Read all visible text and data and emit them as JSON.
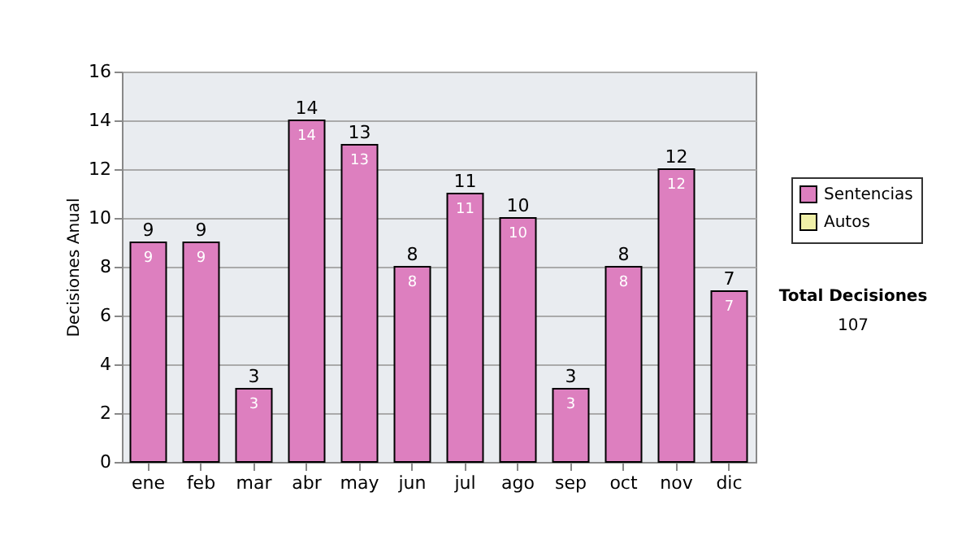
{
  "chart_data": {
    "type": "bar",
    "stacked": true,
    "ylabel": "Decisiones Anual",
    "categories": [
      "ene",
      "feb",
      "mar",
      "abr",
      "may",
      "jun",
      "jul",
      "ago",
      "sep",
      "oct",
      "nov",
      "dic"
    ],
    "series": [
      {
        "name": "Sentencias",
        "color": "#dd7fbf",
        "values": [
          9,
          9,
          3,
          14,
          13,
          8,
          11,
          10,
          3,
          8,
          12,
          7
        ],
        "value_labels": [
          "9",
          "9",
          "3",
          "14",
          "13",
          "8",
          "11",
          "10",
          "3",
          "8",
          "12",
          "7"
        ]
      },
      {
        "name": "Autos",
        "color": "#f0f0a8",
        "values": [
          0,
          0,
          0,
          0,
          0,
          0,
          0,
          0,
          0,
          0,
          0,
          0
        ]
      }
    ],
    "totals": [
      "9",
      "9",
      "3",
      "14",
      "13",
      "8",
      "11",
      "10",
      "3",
      "8",
      "12",
      "7"
    ],
    "ylim": [
      0,
      16
    ],
    "yticks": [
      0,
      2,
      4,
      6,
      8,
      10,
      12,
      14,
      16
    ],
    "grid": "y",
    "legend": "right",
    "annotations": [
      "Total Decisiones",
      "107"
    ]
  }
}
